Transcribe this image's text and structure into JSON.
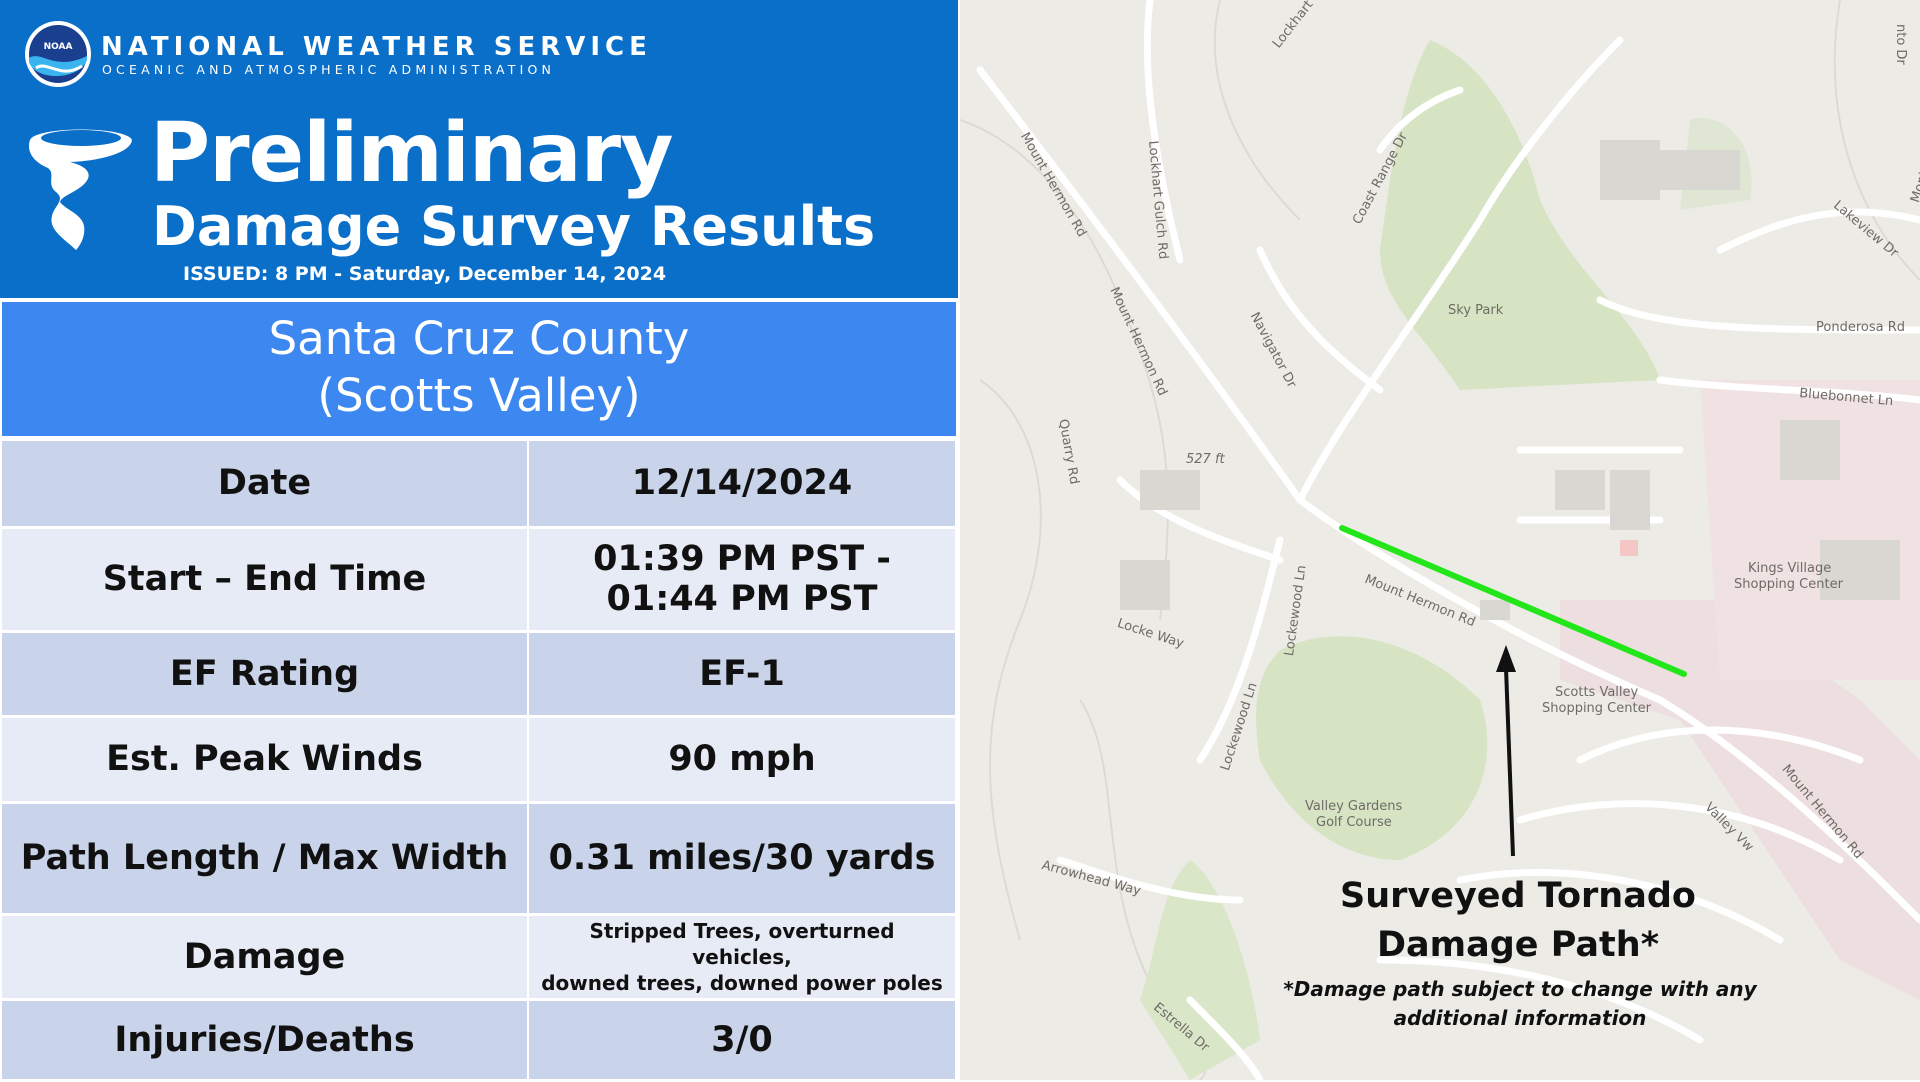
{
  "header": {
    "agency_name": "NATIONAL WEATHER SERVICE",
    "agency_sub": "OCEANIC AND ATMOSPHERIC ADMINISTRATION",
    "logo_text": "NOAA",
    "title_line1": "Preliminary",
    "title_line2": "Damage Survey Results",
    "issued": "ISSUED: 8 PM - Saturday, December 14, 2024"
  },
  "location": {
    "line1": "Santa Cruz County",
    "line2": "(Scotts Valley)"
  },
  "table": {
    "rows": [
      {
        "label": "Date",
        "value": "12/14/2024"
      },
      {
        "label": "Start – End Time",
        "value_line1": "01:39 PM PST -",
        "value_line2": "01:44 PM PST"
      },
      {
        "label": "EF Rating",
        "value": "EF-1"
      },
      {
        "label": "Est. Peak Winds",
        "value": "90 mph"
      },
      {
        "label": "Path Length / Max Width",
        "value": "0.31 miles/30 yards"
      },
      {
        "label": "Damage",
        "value_line1": "Stripped Trees, overturned vehicles,",
        "value_line2": "downed trees, downed power poles"
      },
      {
        "label": "Injuries/Deaths",
        "value": "3/0"
      }
    ]
  },
  "map": {
    "path_color": "#22e61a",
    "annotation_title_line1": "Surveyed Tornado",
    "annotation_title_line2": "Damage Path*",
    "annotation_note": "*Damage path subject to change with any additional information",
    "labels": [
      "Lockhart Gulch Rd",
      "Mount Hermon Rd",
      "Lockhart Gulch Rd",
      "Coast Range Dr",
      "Mount Hermon Rd",
      "Navigator Dr",
      "Sky Park",
      "Lakeview Dr",
      "Ponderosa Rd",
      "Bluebonnet Ln",
      "Quarry Rd",
      "527 ft",
      "Mount Hermon Rd",
      "Lockewood Ln",
      "Kings Village",
      "Shopping Center",
      "Locke Way",
      "Scotts Valley",
      "Shopping Center",
      "Lockewood Ln",
      "Valley Gardens",
      "Golf Course",
      "Arrowhead Way",
      "Valley Vw",
      "Mount Hermon Rd",
      "Estrella Dr",
      "Monteville",
      "nto Dr"
    ]
  }
}
